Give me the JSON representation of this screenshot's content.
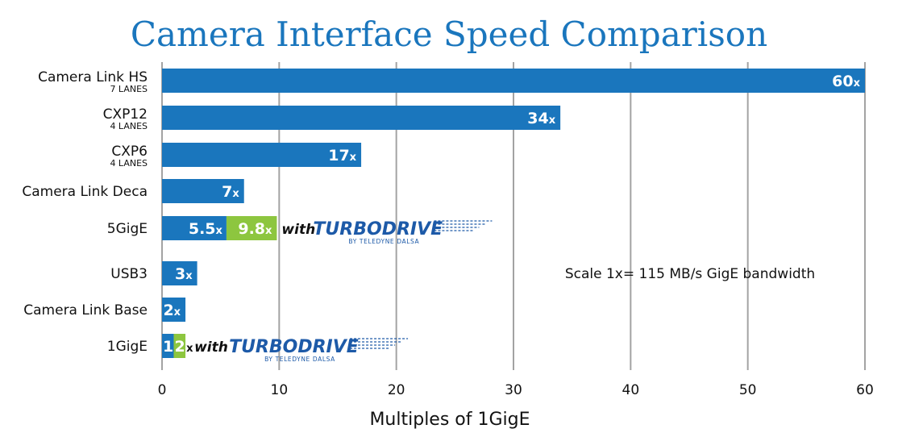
{
  "colors": {
    "primary": "#1a76bd",
    "turbo": "#8dc63f",
    "grid": "#a3a3a3",
    "brand": "#1d5aa8"
  },
  "chart_data": {
    "type": "bar",
    "orientation": "horizontal",
    "title": "Camera Interface Speed Comparison",
    "xlabel": "Multiples of 1GigE",
    "xlim": [
      0,
      60
    ],
    "xticks": [
      0,
      10,
      20,
      30,
      40,
      50,
      60
    ],
    "grid": true,
    "annotation": "Scale 1x= 115 MB/s GigE bandwidth",
    "unit_suffix": "x",
    "categories": [
      {
        "name": "Camera Link HS",
        "sub": "7 LANES",
        "value": 60,
        "label": "60"
      },
      {
        "name": "CXP12",
        "sub": "4 LANES",
        "value": 34,
        "label": "34"
      },
      {
        "name": "CXP6",
        "sub": "4 LANES",
        "value": 17,
        "label": "17"
      },
      {
        "name": "Camera Link Deca",
        "sub": "",
        "value": 7,
        "label": "7"
      },
      {
        "name": "5GigE",
        "sub": "",
        "value": 5.5,
        "label": "5.5",
        "turbo_value": 9.8,
        "turbo_label": "9.8",
        "turbo_text": "with"
      },
      {
        "name": "USB3",
        "sub": "",
        "value": 3,
        "label": "3"
      },
      {
        "name": "Camera Link Base",
        "sub": "",
        "value": 2,
        "label": "2"
      },
      {
        "name": "1GigE",
        "sub": "",
        "value": 1,
        "label": "1",
        "turbo_value": 2,
        "turbo_label": "2",
        "turbo_text": "with"
      }
    ],
    "brand": {
      "name": "TURBODRIVE",
      "tagline": "BY TELEDYNE DALSA"
    }
  }
}
